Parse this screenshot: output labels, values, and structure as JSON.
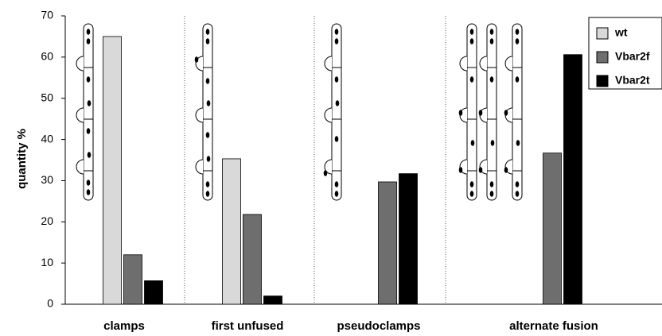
{
  "chart_data": {
    "type": "bar",
    "y_label": "quantity %",
    "categories": [
      "clamps",
      "first unfused",
      "pseudoclamps",
      "alternate fusion"
    ],
    "series": [
      {
        "name": "wt",
        "color": "#d9d9d9",
        "values": [
          65,
          35.3,
          0,
          0
        ]
      },
      {
        "name": "Vbar2f",
        "color": "#6e6e6e",
        "values": [
          12,
          21.8,
          29.7,
          36.7
        ]
      },
      {
        "name": "Vbar2t",
        "color": "#000000",
        "values": [
          5.7,
          2,
          31.7,
          60.6
        ]
      }
    ],
    "ylim": [
      0,
      70
    ],
    "yticks": [
      0,
      10,
      20,
      30,
      40,
      50,
      60,
      70
    ],
    "legend": "upper right"
  }
}
